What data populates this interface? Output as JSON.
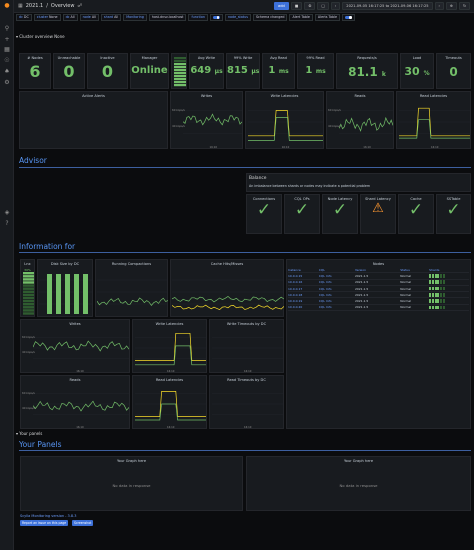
{
  "breadcrumb": {
    "folder": "2021.1",
    "separator": "/",
    "dashboard": "Overview",
    "share_icon": "share-icon"
  },
  "topbar": {
    "zoom_label": "zoom-in-icon",
    "buttons": [
      "add",
      "",
      "",
      "",
      "",
      "2021-09-05 16:17:25 to 2021-09-06 16:17:25",
      "",
      "",
      ""
    ]
  },
  "variables": [
    {
      "label": "dc",
      "value": "DC"
    },
    {
      "label": "cluster",
      "value": "None"
    },
    {
      "label": "dc",
      "value": "All"
    },
    {
      "label": "node",
      "value": "All"
    },
    {
      "label": "shard",
      "value": "All"
    },
    {
      "label": "Monitoring",
      "value": ""
    },
    {
      "label": "",
      "value": "host.dnsv.localhost"
    },
    {
      "label": "function",
      "value": ""
    },
    {
      "label": "",
      "value": ""
    },
    {
      "label": "node_status",
      "value": ""
    },
    {
      "label": "",
      "value": "Schema changed"
    },
    {
      "label": "",
      "value": "Alert Table"
    },
    {
      "label": "",
      "value": "Alerts Table"
    },
    {
      "label": "",
      "value": ""
    }
  ],
  "rows": {
    "cluster_overview": "Cluster overview None",
    "your_panels_row": "Your panels"
  },
  "stats": [
    {
      "title": "# Nodes",
      "value": "6",
      "unit": ""
    },
    {
      "title": "Unreachable",
      "value": "0",
      "unit": ""
    },
    {
      "title": "Inactive",
      "value": "0",
      "unit": ""
    },
    {
      "title": "Manager",
      "value": "Online",
      "unit": ""
    },
    {
      "title": "",
      "value": "",
      "unit": ""
    },
    {
      "title": "Avg Write",
      "value": "649",
      "unit": "μs"
    },
    {
      "title": "99% Write",
      "value": "815",
      "unit": "μs"
    },
    {
      "title": "Avg Read",
      "value": "1",
      "unit": "ms"
    },
    {
      "title": "99% Read",
      "value": "1",
      "unit": "ms"
    },
    {
      "title": "Requests/s",
      "value": "81.1",
      "unit": "k"
    },
    {
      "title": "Load",
      "value": "30",
      "unit": "%"
    },
    {
      "title": "Timeouts",
      "value": "0",
      "unit": ""
    }
  ],
  "small_graphs": [
    {
      "title": "Active Alerts"
    },
    {
      "title": "Writes"
    },
    {
      "title": "Write Latencies"
    },
    {
      "title": "Reads"
    },
    {
      "title": "Read Latencies"
    }
  ],
  "advisor": {
    "section": "Advisor",
    "balance_title": "Balance",
    "balance_desc": "An imbalance between shards or nodes may indicate a potential problem",
    "checks": [
      {
        "title": "Connections",
        "status": "ok"
      },
      {
        "title": "CQL OPs",
        "status": "ok"
      },
      {
        "title": "Node Latency",
        "status": "ok"
      },
      {
        "title": "Shard Latency",
        "status": "warn"
      },
      {
        "title": "Cache",
        "status": "ok"
      },
      {
        "title": "SSTable",
        "status": "ok"
      }
    ]
  },
  "information": {
    "section": "Information for",
    "disk_title": "Disk Size by DC",
    "compactions_title": "Running Compactions",
    "cache_title": "Cache Hits/Misses",
    "gauge_title": "Lnx",
    "gauge_value": "30%",
    "nodes_title": "Nodes",
    "nodes_columns": [
      "Instance",
      "CQL",
      "Version",
      "Status",
      "Shards"
    ],
    "nodes_rows": [
      {
        "ip": "10.0.0.15",
        "cql": "CQL Info",
        "ver": "2021.1.5",
        "status": "Normal"
      },
      {
        "ip": "10.0.0.16",
        "cql": "CQL Info",
        "ver": "2021.1.5",
        "status": "Normal"
      },
      {
        "ip": "10.0.0.17",
        "cql": "CQL Info",
        "ver": "2021.1.5",
        "status": "Normal"
      },
      {
        "ip": "10.0.0.18",
        "cql": "CQL Info",
        "ver": "2021.1.5",
        "status": "Normal"
      },
      {
        "ip": "10.0.0.19",
        "cql": "CQL Info",
        "ver": "2021.1.5",
        "status": "Normal"
      },
      {
        "ip": "10.0.0.20",
        "cql": "CQL Info",
        "ver": "2021.1.5",
        "status": "Normal"
      }
    ],
    "writes_title": "Writes",
    "write_lat_title": "Write Latencies",
    "write_timeouts_title": "Write Timeouts by DC",
    "reads_title": "Reads",
    "read_lat_title": "Read Latencies",
    "read_timeouts_title": "Read Timeouts by DC"
  },
  "graph_labels": {
    "y_high": "60 kops/s",
    "y_mid": "40 kops/s",
    "y_low": "20 kops/s",
    "x_a": "16:10",
    "x_b": "16:15"
  },
  "your_panels": {
    "section": "Your Panels",
    "left_title": "Your Graph here",
    "right_title": "Your Graph here",
    "no_data": "No data in response"
  },
  "footer": {
    "version": "Scylla Monitoring version - 3.8.3",
    "report_button": "Report an issue on this page",
    "screenshot_button": "Screenshot"
  }
}
